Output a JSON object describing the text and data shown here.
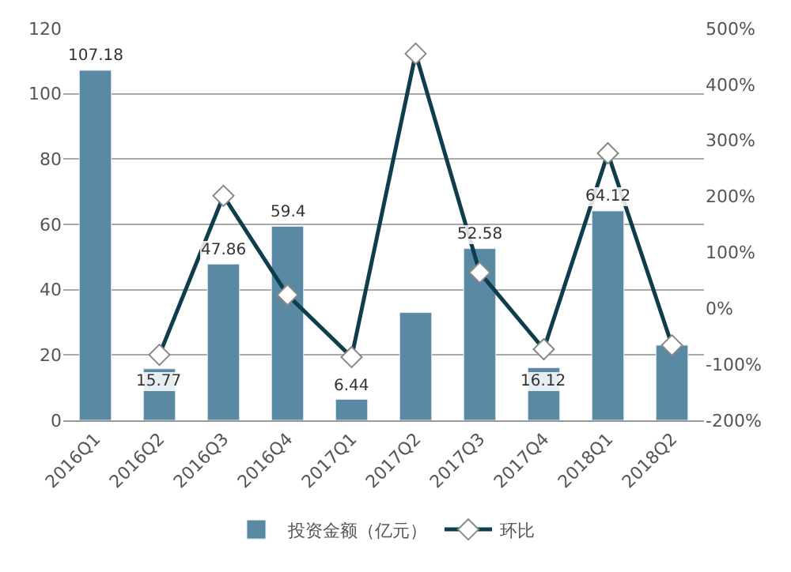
{
  "chart_data": {
    "type": "bar",
    "categories": [
      "2016Q1",
      "2016Q2",
      "2016Q3",
      "2016Q4",
      "2017Q1",
      "2017Q2",
      "2017Q3",
      "2017Q4",
      "2018Q1",
      "2018Q2"
    ],
    "series": [
      {
        "name": "投资金额（亿元）",
        "type": "bar",
        "color": "#5a8aa3",
        "values": [
          107.18,
          15.77,
          47.86,
          59.4,
          6.44,
          33,
          52.58,
          16.12,
          64.12,
          23
        ],
        "value_labels": [
          "107.18",
          "15.77",
          "47.86",
          "59.4",
          "6.44",
          null,
          "52.58",
          "16.12",
          "64.12",
          null
        ]
      },
      {
        "name": "环比",
        "type": "line",
        "axis": "y2",
        "color": "#0e3d4d",
        "marker": "diamond",
        "values": [
          null,
          -83,
          201,
          24,
          -87,
          455,
          64,
          -73,
          277,
          -66
        ]
      }
    ],
    "ylim": [
      0,
      120
    ],
    "yticks": [
      0,
      20,
      40,
      60,
      80,
      100,
      120
    ],
    "y2lim": [
      -200,
      500
    ],
    "y2ticks": [
      {
        "value": -200,
        "label": "-200%"
      },
      {
        "value": -100,
        "label": "-100%"
      },
      {
        "value": 0,
        "label": "0%"
      },
      {
        "value": 100,
        "label": "100%"
      },
      {
        "value": 200,
        "label": "200%"
      },
      {
        "value": 300,
        "label": "300%"
      },
      {
        "value": 400,
        "label": "400%"
      },
      {
        "value": 500,
        "label": "500%"
      }
    ],
    "grid": "y",
    "legend": "bottom"
  }
}
